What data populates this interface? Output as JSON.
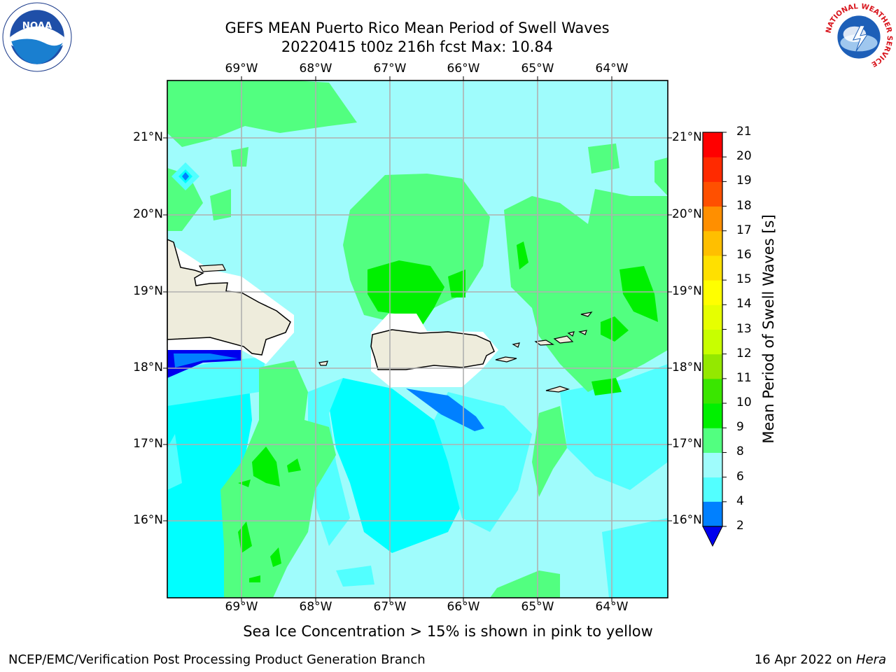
{
  "header": {
    "title_line1": "GEFS MEAN Puerto Rico Mean Period of Swell Waves",
    "title_line2": "20220415 t00z 216h fcst   Max: 10.84"
  },
  "logos": {
    "left": "NOAA logo",
    "right": "National Weather Service logo",
    "nws_ring_text": "NATIONAL WEATHER SERVICE"
  },
  "map": {
    "lon_labels": [
      "69°W",
      "68°W",
      "67°W",
      "66°W",
      "65°W",
      "64°W"
    ],
    "lat_labels": [
      "21°N",
      "20°N",
      "19°N",
      "18°N",
      "17°N",
      "16°N"
    ],
    "land_color": "#eeecdc",
    "background_color": "#9ffcfc"
  },
  "colorbar": {
    "title": "Mean Period of Swell Waves [s]",
    "ticks": [
      "2",
      "4",
      "6",
      "8",
      "9",
      "10",
      "11",
      "12",
      "13",
      "14",
      "15",
      "16",
      "17",
      "18",
      "19",
      "20",
      "21"
    ],
    "colors": [
      "#0080ff",
      "#00ffff",
      "#52ffff",
      "#9ffcfc",
      "#52ff80",
      "#00f000",
      "#3ae600",
      "#94e800",
      "#c8ff00",
      "#e6ff00",
      "#ffff00",
      "#ffe000",
      "#ffbf00",
      "#ff8f00",
      "#ff5000",
      "#ff2a00",
      "#ff0000"
    ],
    "extend_low_color": "#0000ee"
  },
  "footer": {
    "ice_note": "Sea Ice Concentration > 15% is shown in pink to yellow",
    "credit": "NCEP/EMC/Verification Post Processing Product Generation Branch",
    "date": "16 Apr 2022 on",
    "machine": "Hera"
  }
}
